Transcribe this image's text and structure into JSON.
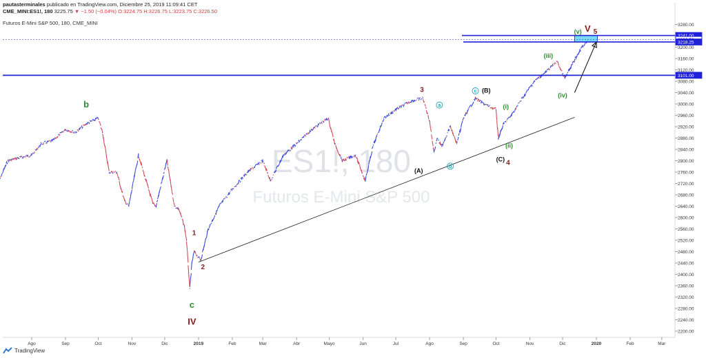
{
  "header": {
    "author": "pautasterminales",
    "published": "publicado en TradingView.com, Diciembre 25, 2019 11:09:41 CET",
    "symbol": "CME_MINI:ES1!, 180",
    "last": "3225.75",
    "change": "▼ −1.50 (−0.04%)",
    "ohlc": "O:3224.75 H:3226.75 L:3223.75 C:3226.50"
  },
  "legend_title": "Futuros E-Mini S&P 500, 180, CME_MINI",
  "watermark": {
    "symbol": "ES1!, 180",
    "name": "Futuros E-Mini S&P 500"
  },
  "footer": {
    "brand": "TradingView"
  },
  "colors": {
    "up": "#3b4bd8",
    "down": "#d34a5a",
    "line": "#1a1a1a",
    "hline": "#1f22d6",
    "green": "#2e8b2e",
    "darkred": "#8b1a1a",
    "teal": "#1aa6b7",
    "box": "#5ad0f2"
  },
  "chart_data": {
    "type": "line",
    "title": "Futuros E-Mini S&P 500, 180, CME_MINI",
    "ylim": [
      2180,
      3300
    ],
    "y_ticks": [
      3280,
      3240,
      3200,
      3160,
      3120,
      3080,
      3040,
      3000,
      2960,
      2920,
      2880,
      2840,
      2800,
      2760,
      2720,
      2680,
      2640,
      2600,
      2560,
      2520,
      2480,
      2440,
      2400,
      2360,
      2320,
      2280,
      2240,
      2200
    ],
    "x_ticks": [
      {
        "label": "Ago",
        "date": "2018-08-01"
      },
      {
        "label": "Sep",
        "date": "2018-09-01"
      },
      {
        "label": "Oct",
        "date": "2018-10-01"
      },
      {
        "label": "Nov",
        "date": "2018-11-01"
      },
      {
        "label": "Dic",
        "date": "2018-12-01"
      },
      {
        "label": "2019",
        "date": "2019-01-01"
      },
      {
        "label": "Feb",
        "date": "2019-02-01"
      },
      {
        "label": "Mar",
        "date": "2019-03-01"
      },
      {
        "label": "Abr",
        "date": "2019-04-01"
      },
      {
        "label": "Mayo",
        "date": "2019-05-01"
      },
      {
        "label": "Jun",
        "date": "2019-06-01"
      },
      {
        "label": "Jul",
        "date": "2019-07-01"
      },
      {
        "label": "Ago",
        "date": "2019-08-01"
      },
      {
        "label": "Sep",
        "date": "2019-09-01"
      },
      {
        "label": "Oct",
        "date": "2019-10-01"
      },
      {
        "label": "Nov",
        "date": "2019-11-01"
      },
      {
        "label": "Dic",
        "date": "2019-12-01"
      },
      {
        "label": "2020",
        "date": "2020-01-01"
      },
      {
        "label": "Feb",
        "date": "2020-02-01"
      },
      {
        "label": "Mar",
        "date": "2020-03-01"
      }
    ],
    "series": [
      {
        "x": [
          "2018-07-01",
          "2018-07-10",
          "2018-07-20",
          "2018-08-01",
          "2018-08-10",
          "2018-08-20",
          "2018-09-01",
          "2018-09-10",
          "2018-09-20",
          "2018-10-01",
          "2018-10-05",
          "2018-10-11",
          "2018-10-18",
          "2018-10-25",
          "2018-10-29",
          "2018-11-07",
          "2018-11-20",
          "2018-11-23",
          "2018-12-03",
          "2018-12-10",
          "2018-12-14",
          "2018-12-19",
          "2018-12-21",
          "2018-12-24",
          "2018-12-26",
          "2018-12-28",
          "2019-01-03",
          "2019-01-10",
          "2019-01-20",
          "2019-02-01",
          "2019-02-15",
          "2019-03-01",
          "2019-03-08",
          "2019-03-20",
          "2019-04-01",
          "2019-04-15",
          "2019-04-30",
          "2019-05-06",
          "2019-05-13",
          "2019-05-25",
          "2019-06-03",
          "2019-06-10",
          "2019-06-20",
          "2019-07-01",
          "2019-07-15",
          "2019-07-26",
          "2019-08-01",
          "2019-08-05",
          "2019-08-08",
          "2019-08-12",
          "2019-08-20",
          "2019-08-26",
          "2019-09-01",
          "2019-09-12",
          "2019-09-20",
          "2019-10-01",
          "2019-10-03",
          "2019-10-08",
          "2019-10-15",
          "2019-10-25",
          "2019-11-05",
          "2019-11-15",
          "2019-11-26",
          "2019-12-03",
          "2019-12-10",
          "2019-12-17",
          "2019-12-24"
        ],
        "y": [
          2720,
          2800,
          2810,
          2820,
          2860,
          2870,
          2910,
          2900,
          2930,
          2950,
          2900,
          2760,
          2760,
          2660,
          2640,
          2820,
          2650,
          2640,
          2800,
          2640,
          2630,
          2570,
          2520,
          2350,
          2440,
          2480,
          2450,
          2560,
          2640,
          2700,
          2760,
          2800,
          2730,
          2820,
          2860,
          2910,
          2950,
          2860,
          2800,
          2820,
          2730,
          2850,
          2950,
          2980,
          3010,
          3020,
          2940,
          2830,
          2880,
          2850,
          2920,
          2860,
          2950,
          3020,
          3000,
          2980,
          2880,
          2930,
          2960,
          3020,
          3080,
          3110,
          3150,
          3090,
          3140,
          3190,
          3226
        ]
      }
    ],
    "price_labels": [
      {
        "value": "3241.00",
        "y": 3241,
        "style": "blue"
      },
      {
        "value": "3226.50",
        "y": 3226.5,
        "style": "white"
      },
      {
        "value": "3218.25",
        "y": 3218.25,
        "style": "blue"
      },
      {
        "value": "3101.00",
        "y": 3101,
        "style": "blue"
      }
    ],
    "horizontal_lines": [
      3241,
      3218.25,
      3101
    ],
    "trendline": {
      "from": {
        "x": "2019-01-01",
        "y": 2443
      },
      "to": {
        "x": "2019-12-12",
        "y": 2953
      }
    },
    "arrow": {
      "from": {
        "x": "2019-12-12",
        "y": 3040
      },
      "to": {
        "x": "2020-01-01",
        "y": 3218
      }
    },
    "target_box": {
      "x0": "2019-12-12",
      "x1": "2020-01-02",
      "y0": 3218.25,
      "y1": 3241
    },
    "wave_labels": [
      {
        "text": "b",
        "x": "2018-09-20",
        "y": 2995,
        "color": "green",
        "size": "lg"
      },
      {
        "text": "1",
        "x": "2018-12-28",
        "y": 2545,
        "color": "darkred",
        "size": "md"
      },
      {
        "text": "2",
        "x": "2019-01-05",
        "y": 2425,
        "color": "darkred",
        "size": "md"
      },
      {
        "text": "c",
        "x": "2018-12-26",
        "y": 2290,
        "color": "green",
        "size": "lg"
      },
      {
        "text": "IV",
        "x": "2018-12-26",
        "y": 2230,
        "color": "darkred",
        "size": "lg"
      },
      {
        "text": "3",
        "x": "2019-07-25",
        "y": 3050,
        "color": "darkred",
        "size": "md"
      },
      {
        "text": "(A)",
        "x": "2019-07-22",
        "y": 2765,
        "color": "black",
        "size": "sm"
      },
      {
        "text": "b",
        "x": "2019-08-20",
        "y": 2775,
        "color": "teal",
        "size": "circle"
      },
      {
        "text": "a",
        "x": "2019-08-10",
        "y": 2990,
        "color": "teal",
        "size": "circle"
      },
      {
        "text": "c",
        "x": "2019-09-12",
        "y": 3040,
        "color": "teal",
        "size": "circle"
      },
      {
        "text": "(B)",
        "x": "2019-09-22",
        "y": 3047,
        "color": "black",
        "size": "sm"
      },
      {
        "text": "(i)",
        "x": "2019-10-10",
        "y": 2990,
        "color": "green",
        "size": "sm"
      },
      {
        "text": "(ii)",
        "x": "2019-10-13",
        "y": 2853,
        "color": "green",
        "size": "sm"
      },
      {
        "text": "(C)",
        "x": "2019-10-05",
        "y": 2805,
        "color": "black",
        "size": "sm"
      },
      {
        "text": "4",
        "x": "2019-10-12",
        "y": 2793,
        "color": "darkred",
        "size": "md"
      },
      {
        "text": "(iii)",
        "x": "2019-11-18",
        "y": 3170,
        "color": "green",
        "size": "sm"
      },
      {
        "text": "(iv)",
        "x": "2019-12-01",
        "y": 3030,
        "color": "green",
        "size": "sm"
      },
      {
        "text": "(v)",
        "x": "2019-12-15",
        "y": 3255,
        "color": "green",
        "size": "sm"
      },
      {
        "text": "V",
        "x": "2019-12-24",
        "y": 3262,
        "color": "darkred",
        "size": "lg"
      },
      {
        "text": "5",
        "x": "2019-12-31",
        "y": 3255,
        "color": "darkred",
        "size": "md"
      }
    ]
  }
}
